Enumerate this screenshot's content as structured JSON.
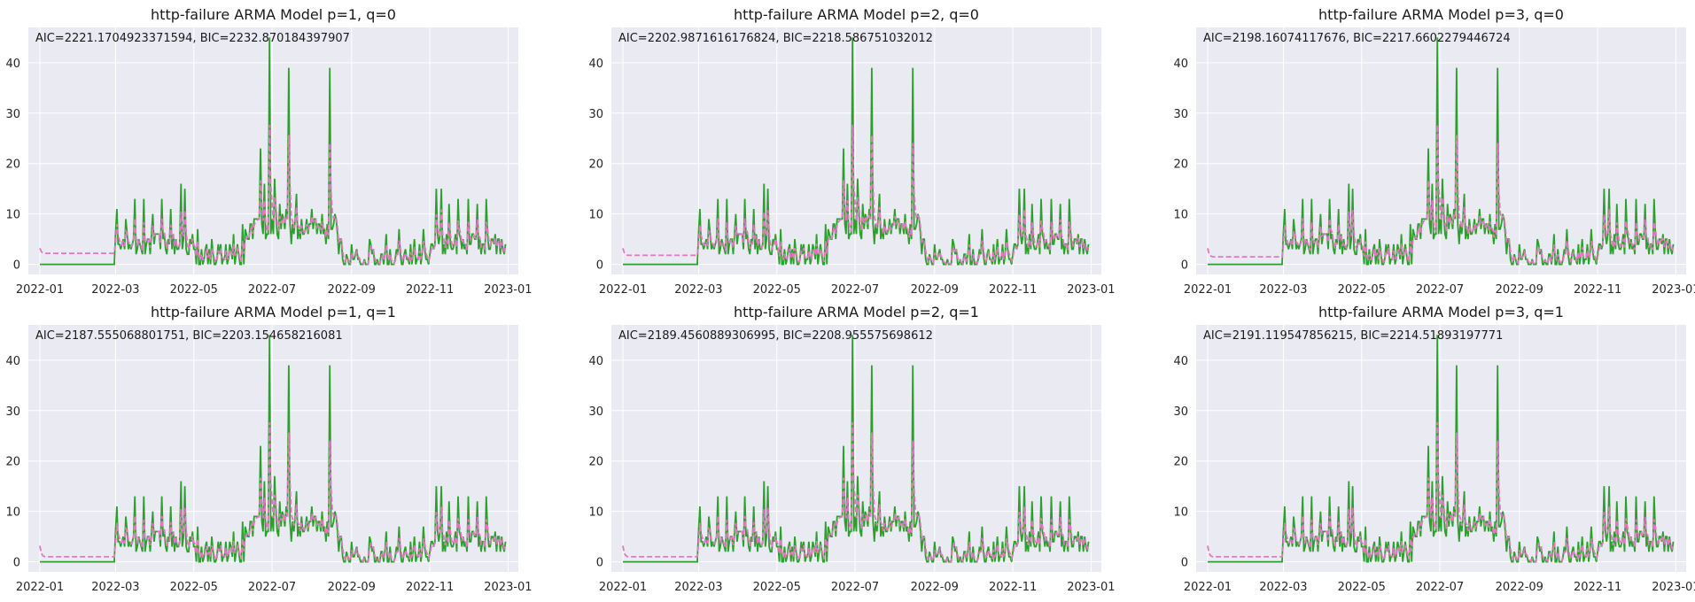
{
  "chart_data": [
    {
      "type": "line",
      "title": "http-failure ARMA Model p=1, q=0",
      "annotation": "AIC=2221.1704923371594, BIC=2232.870184397907",
      "ylim": [
        -2,
        47
      ],
      "yticks": [
        0,
        10,
        20,
        30,
        40
      ],
      "xlim": [
        "2021-12-23",
        "2023-01-09"
      ],
      "xticks": [
        "2022-01",
        "2022-03",
        "2022-05",
        "2022-07",
        "2022-09",
        "2022-11",
        "2023-01"
      ],
      "grid": true,
      "series": [
        {
          "role": "observed",
          "color": "#2ca02c",
          "style": "solid"
        },
        {
          "role": "fitted",
          "color": "#e377c2",
          "style": "dashed",
          "level": 2.2
        }
      ]
    },
    {
      "type": "line",
      "title": "http-failure ARMA Model p=2, q=0",
      "annotation": "AIC=2202.9871616176824, BIC=2218.586751032012",
      "ylim": [
        -2,
        47
      ],
      "yticks": [
        0,
        10,
        20,
        30,
        40
      ],
      "xlim": [
        "2021-12-23",
        "2023-01-09"
      ],
      "xticks": [
        "2022-01",
        "2022-03",
        "2022-05",
        "2022-07",
        "2022-09",
        "2022-11",
        "2023-01"
      ],
      "grid": true,
      "series": [
        {
          "role": "observed",
          "color": "#2ca02c",
          "style": "solid"
        },
        {
          "role": "fitted",
          "color": "#e377c2",
          "style": "dashed",
          "level": 1.8
        }
      ]
    },
    {
      "type": "line",
      "title": "http-failure ARMA Model p=3, q=0",
      "annotation": "AIC=2198.16074117676, BIC=2217.6602279446724",
      "ylim": [
        -2,
        47
      ],
      "yticks": [
        0,
        10,
        20,
        30,
        40
      ],
      "xlim": [
        "2021-12-23",
        "2023-01-09"
      ],
      "xticks": [
        "2022-01",
        "2022-03",
        "2022-05",
        "2022-07",
        "2022-09",
        "2022-11",
        "2023-01"
      ],
      "grid": true,
      "series": [
        {
          "role": "observed",
          "color": "#2ca02c",
          "style": "solid"
        },
        {
          "role": "fitted",
          "color": "#e377c2",
          "style": "dashed",
          "level": 1.5
        }
      ]
    },
    {
      "type": "line",
      "title": "http-failure ARMA Model p=1, q=1",
      "annotation": "AIC=2187.555068801751, BIC=2203.154658216081",
      "ylim": [
        -2,
        47
      ],
      "yticks": [
        0,
        10,
        20,
        30,
        40
      ],
      "xlim": [
        "2021-12-23",
        "2023-01-09"
      ],
      "xticks": [
        "2022-01",
        "2022-03",
        "2022-05",
        "2022-07",
        "2022-09",
        "2022-11",
        "2023-01"
      ],
      "grid": true,
      "series": [
        {
          "role": "observed",
          "color": "#2ca02c",
          "style": "solid"
        },
        {
          "role": "fitted",
          "color": "#e377c2",
          "style": "dashed",
          "level": 1.0
        }
      ]
    },
    {
      "type": "line",
      "title": "http-failure ARMA Model p=2, q=1",
      "annotation": "AIC=2189.4560889306995, BIC=2208.955575698612",
      "ylim": [
        -2,
        47
      ],
      "yticks": [
        0,
        10,
        20,
        30,
        40
      ],
      "xlim": [
        "2021-12-23",
        "2023-01-09"
      ],
      "xticks": [
        "2022-01",
        "2022-03",
        "2022-05",
        "2022-07",
        "2022-09",
        "2022-11",
        "2023-01"
      ],
      "grid": true,
      "series": [
        {
          "role": "observed",
          "color": "#2ca02c",
          "style": "solid"
        },
        {
          "role": "fitted",
          "color": "#e377c2",
          "style": "dashed",
          "level": 1.0
        }
      ]
    },
    {
      "type": "line",
      "title": "http-failure ARMA Model p=3, q=1",
      "annotation": "AIC=2191.119547856215, BIC=2214.51893197771",
      "ylim": [
        -2,
        47
      ],
      "yticks": [
        0,
        10,
        20,
        30,
        40
      ],
      "xlim": [
        "2021-12-23",
        "2023-01-09"
      ],
      "xticks": [
        "2022-01",
        "2022-03",
        "2022-05",
        "2022-07",
        "2022-09",
        "2022-11",
        "2023-01"
      ],
      "grid": true,
      "series": [
        {
          "role": "observed",
          "color": "#2ca02c",
          "style": "solid"
        },
        {
          "role": "fitted",
          "color": "#e377c2",
          "style": "dashed",
          "level": 1.0
        }
      ]
    }
  ],
  "observed_series": {
    "start": "2022-01-01",
    "zero_until": "2022-02-28",
    "end": "2022-12-30",
    "spikes": [
      [
        "2022-03-02",
        11
      ],
      [
        "2022-03-09",
        9
      ],
      [
        "2022-03-16",
        13
      ],
      [
        "2022-03-23",
        13
      ],
      [
        "2022-03-30",
        10
      ],
      [
        "2022-04-06",
        13
      ],
      [
        "2022-04-13",
        11
      ],
      [
        "2022-04-21",
        16
      ],
      [
        "2022-04-24",
        15
      ],
      [
        "2022-05-04",
        7
      ],
      [
        "2022-05-15",
        5
      ],
      [
        "2022-06-01",
        6
      ],
      [
        "2022-06-08",
        8
      ],
      [
        "2022-06-18",
        9
      ],
      [
        "2022-06-22",
        23
      ],
      [
        "2022-06-25",
        16
      ],
      [
        "2022-06-29",
        45
      ],
      [
        "2022-07-03",
        17
      ],
      [
        "2022-07-07",
        12
      ],
      [
        "2022-07-12",
        11
      ],
      [
        "2022-07-14",
        39
      ],
      [
        "2022-07-20",
        14
      ],
      [
        "2022-08-01",
        11
      ],
      [
        "2022-08-10",
        6
      ],
      [
        "2022-08-15",
        39
      ],
      [
        "2022-08-24",
        5
      ],
      [
        "2022-09-15",
        5
      ],
      [
        "2022-09-28",
        6
      ],
      [
        "2022-10-08",
        7
      ],
      [
        "2022-10-20",
        5
      ],
      [
        "2022-10-27",
        7
      ],
      [
        "2022-11-06",
        15
      ],
      [
        "2022-11-10",
        15
      ],
      [
        "2022-11-16",
        12
      ],
      [
        "2022-11-23",
        13
      ],
      [
        "2022-12-01",
        13
      ],
      [
        "2022-12-08",
        12
      ],
      [
        "2022-12-15",
        13
      ],
      [
        "2022-12-20",
        5
      ]
    ]
  }
}
